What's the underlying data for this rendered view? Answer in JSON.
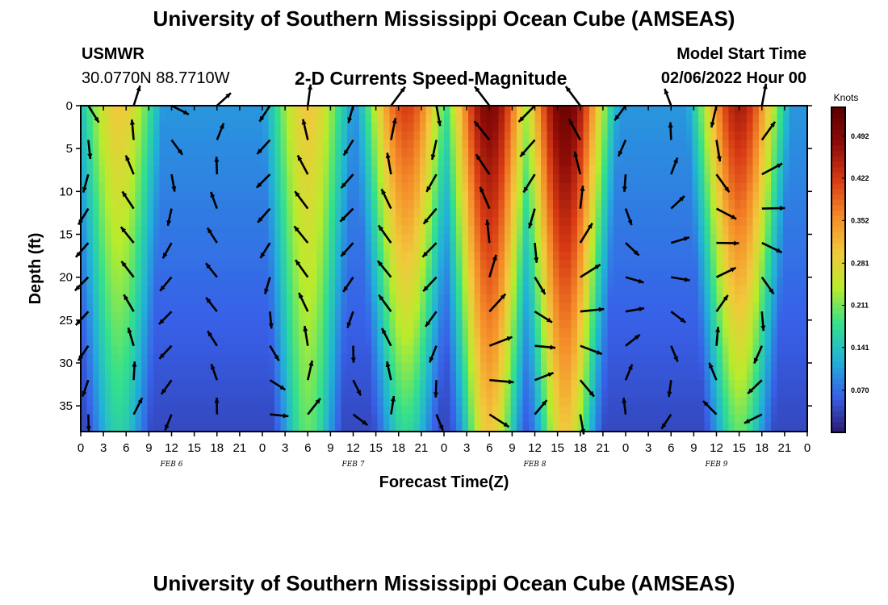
{
  "header": {
    "title": "University of Southern Mississippi Ocean Cube (AMSEAS)",
    "station": "USMWR",
    "coords": "30.0770N  88.7710W",
    "subtitle": "2-D Currents Speed-Magnitude",
    "model_start_label": "Model Start Time",
    "model_start_value": "02/06/2022 Hour 00"
  },
  "footer": {
    "title": "University of Southern Mississippi Ocean Cube (AMSEAS)"
  },
  "chart_data": {
    "type": "heatmap",
    "title": "2-D Currents Speed-Magnitude",
    "xlabel": "Forecast Time(Z)",
    "ylabel": "Depth (ft)",
    "xlim": [
      0,
      96
    ],
    "ylim": [
      38,
      0
    ],
    "x_ticks": [
      0,
      3,
      6,
      9,
      12,
      15,
      18,
      21,
      24,
      27,
      30,
      33,
      36,
      39,
      42,
      45,
      48,
      51,
      54,
      57,
      60,
      63,
      66,
      69,
      72,
      75,
      78,
      81,
      84,
      87,
      90,
      93,
      96
    ],
    "x_tick_labels": [
      "0",
      "3",
      "6",
      "9",
      "12",
      "15",
      "18",
      "21",
      "0",
      "3",
      "6",
      "9",
      "12",
      "15",
      "18",
      "21",
      "0",
      "3",
      "6",
      "9",
      "12",
      "15",
      "18",
      "21",
      "0",
      "3",
      "6",
      "9",
      "12",
      "15",
      "18",
      "21",
      "0"
    ],
    "y_ticks": [
      0,
      5,
      10,
      15,
      20,
      25,
      30,
      35
    ],
    "y_tick_labels": [
      "0",
      "5",
      "10",
      "15",
      "20",
      "25",
      "30",
      "35"
    ],
    "day_labels": [
      {
        "x": 12,
        "text": "FEB 6"
      },
      {
        "x": 36,
        "text": "FEB 7"
      },
      {
        "x": 60,
        "text": "FEB 8"
      },
      {
        "x": 84,
        "text": "FEB 9"
      }
    ],
    "colorbar": {
      "label": "Knots",
      "min": 0.0,
      "max": 0.54,
      "ticks": [
        0.07,
        0.141,
        0.211,
        0.281,
        0.352,
        0.422,
        0.492
      ],
      "tick_labels": [
        "0.070",
        "0.141",
        "0.211",
        "0.281",
        "0.352",
        "0.422",
        "0.492"
      ]
    },
    "speed_peaks_knots": [
      {
        "center_hour": 5,
        "surface": 0.3,
        "bottom": 0.16
      },
      {
        "center_hour": 30,
        "surface": 0.3,
        "bottom": 0.2
      },
      {
        "center_hour": 43,
        "surface": 0.42,
        "bottom": 0.17
      },
      {
        "center_hour": 54,
        "surface": 0.5,
        "bottom": 0.3
      },
      {
        "center_hour": 64,
        "surface": 0.52,
        "bottom": 0.3
      },
      {
        "center_hour": 87,
        "surface": 0.46,
        "bottom": 0.2
      }
    ],
    "vector_depths_ft": [
      0,
      4,
      8,
      12,
      16,
      20,
      24,
      28,
      32,
      36
    ],
    "vector_hours": [
      1,
      7,
      12,
      18,
      25,
      30,
      36,
      41,
      47,
      54,
      60,
      66,
      72,
      78,
      84,
      90
    ]
  },
  "colors": {
    "colormap": [
      "#2a1a6e",
      "#3860e8",
      "#21b1d8",
      "#34e08c",
      "#b8ec2c",
      "#f2c83c",
      "#f48a28",
      "#d83a14",
      "#8e0c08",
      "#5c0000"
    ],
    "vector": "#000000"
  }
}
